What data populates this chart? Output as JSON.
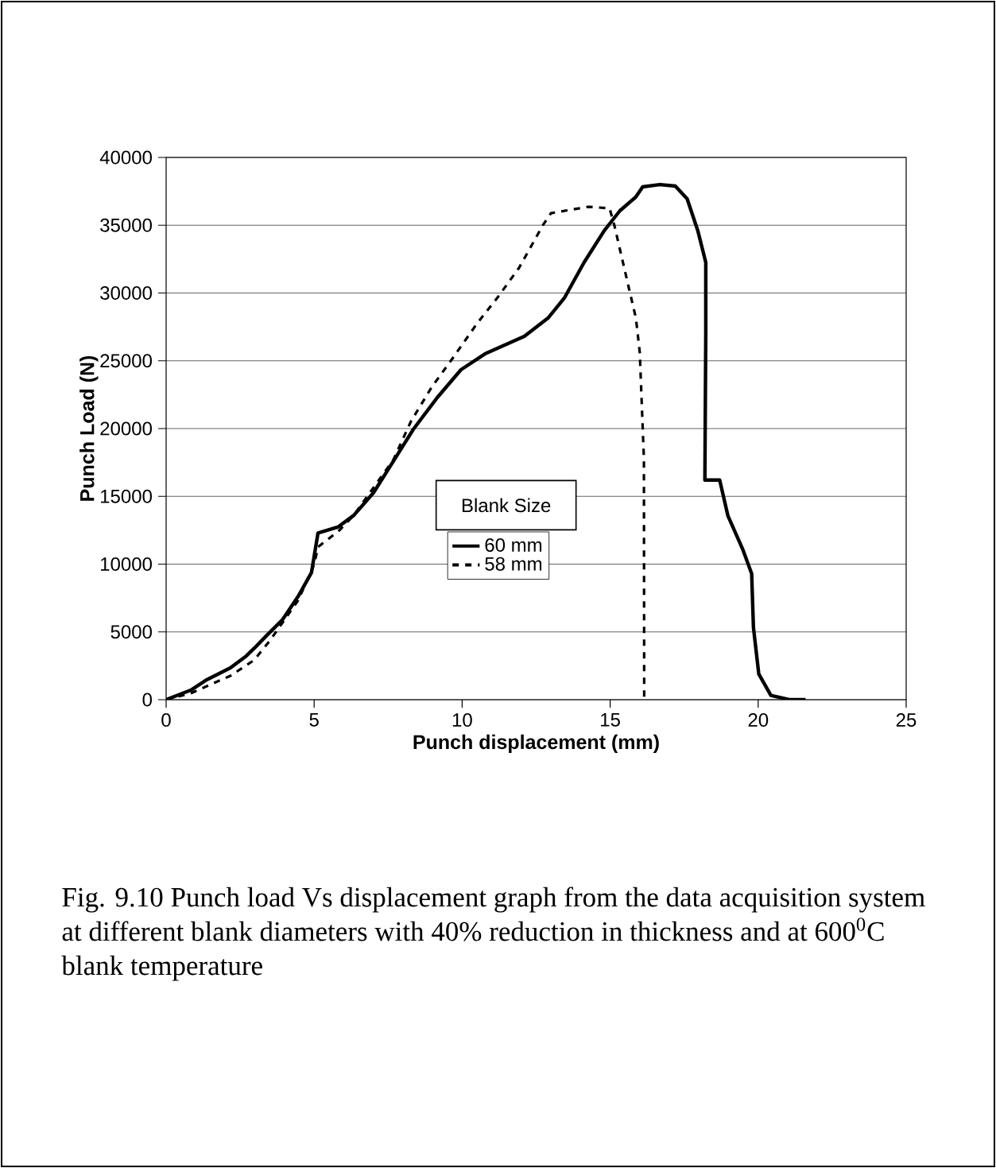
{
  "chart_data": {
    "type": "line",
    "xlabel": "Punch displacement (mm)",
    "ylabel": "Punch Load (N)",
    "legend_title": "Blank Size",
    "xlim": [
      0,
      25
    ],
    "xticks": [
      0,
      5,
      10,
      15,
      20,
      25
    ],
    "ylim": [
      0,
      40000
    ],
    "yticks": [
      0,
      5000,
      10000,
      15000,
      20000,
      25000,
      30000,
      35000,
      40000
    ],
    "grid": "y",
    "legend": "center",
    "marker": "none",
    "series": [
      {
        "name": "60 mm",
        "color": "#000000",
        "line_style": "solid",
        "x": [
          0,
          0.83,
          1.37,
          2.17,
          2.71,
          2.98,
          3.38,
          3.92,
          4.46,
          4.91,
          5.13,
          5.8,
          6.34,
          7.0,
          7.68,
          8.35,
          9.16,
          9.96,
          10.77,
          12.1,
          12.9,
          13.45,
          14.12,
          14.8,
          15.33,
          15.86,
          16.1,
          16.68,
          17.2,
          17.6,
          17.96,
          18.23,
          18.23,
          18.2,
          18.7,
          18.98,
          19.47,
          19.78,
          19.84,
          20.02,
          20.43,
          21.05,
          21.6
        ],
        "values": [
          0,
          700,
          1470,
          2350,
          3230,
          3800,
          4700,
          5870,
          7620,
          9380,
          12300,
          12730,
          13600,
          15250,
          17600,
          19940,
          22290,
          24340,
          25510,
          26800,
          28150,
          29620,
          32260,
          34600,
          36070,
          37070,
          37830,
          38000,
          37890,
          36950,
          34600,
          32260,
          26980,
          16200,
          16200,
          13550,
          11140,
          9300,
          5340,
          1900,
          320,
          0,
          0
        ]
      },
      {
        "name": "58 mm",
        "color": "#000000",
        "line_style": "dashed",
        "x": [
          0,
          0.83,
          2.17,
          2.98,
          3.52,
          4.46,
          5.0,
          5.13,
          5.85,
          6.34,
          7.68,
          8.27,
          8.97,
          9.69,
          10.5,
          11.22,
          11.92,
          12.73,
          13.0,
          14.26,
          14.98,
          15.14,
          15.6,
          15.87,
          16.0,
          16.14,
          16.15
        ],
        "values": [
          0,
          470,
          1760,
          2930,
          4400,
          7330,
          9970,
          11260,
          12490,
          13600,
          17710,
          20530,
          23050,
          25220,
          27740,
          29740,
          31850,
          35010,
          35890,
          36360,
          36250,
          35010,
          30670,
          28150,
          25630,
          17770,
          0
        ]
      }
    ],
    "annotations": [
      "Fig. 9.10 Punch load Vs displacement graph from the data acquisition system at different blank diameters with 40% reduction in thickness and at 600$^{0}$C blank temperature"
    ]
  }
}
